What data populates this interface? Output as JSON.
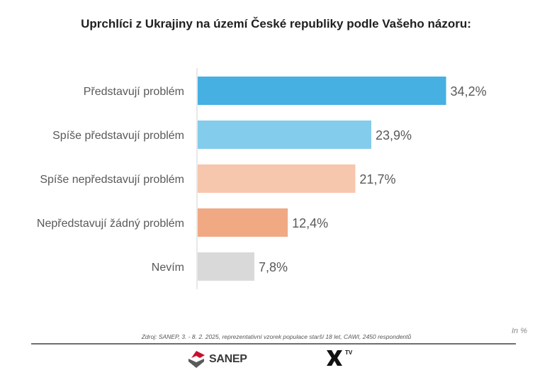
{
  "chart_data": {
    "type": "bar",
    "orientation": "horizontal",
    "title": "Uprchlíci z Ukrajiny na území České republiky podle Vašeho názoru:",
    "categories": [
      "Představují problém",
      "Spíše představují problém",
      "Spíše nepředstavují problém",
      "Nepředstavují žádný problém",
      "Nevím"
    ],
    "values": [
      34.2,
      23.9,
      21.7,
      12.4,
      7.8
    ],
    "value_labels": [
      "34,2%",
      "23,9%",
      "21,7%",
      "12,4%",
      "7,8%"
    ],
    "colors": [
      "#45b0e1",
      "#83cceb",
      "#f6c6ad",
      "#f1a983",
      "#d9d9d9"
    ],
    "xlim": [
      0,
      40
    ],
    "grid": false,
    "legend": "none"
  },
  "source_note": "Zdroj: SANEP, 3. - 8. 2. 2025, reprezentativní vzorek populace starší 18 let, CAWI, 2450 respondentů",
  "unit_note": "In %",
  "logos": {
    "sanep": "SANEP",
    "xtv": "TV"
  }
}
